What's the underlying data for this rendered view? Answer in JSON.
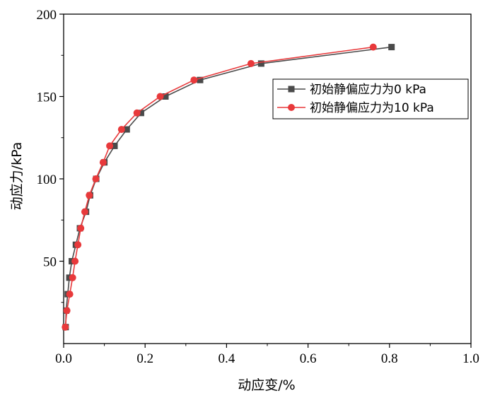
{
  "chart_data": {
    "type": "line",
    "xlabel": "动应变/%",
    "ylabel": "动应力/kPa",
    "xlim": [
      0.0,
      1.0
    ],
    "ylim": [
      0,
      200
    ],
    "x_ticks": [
      "0.0",
      "0.2",
      "0.4",
      "0.6",
      "0.8",
      "1.0"
    ],
    "y_ticks": [
      "50",
      "100",
      "150",
      "200"
    ],
    "legend_position": "upper-right",
    "grid": false,
    "series": [
      {
        "name": "初始静偏应力为0 kPa",
        "color": "#4a4a4a",
        "marker": "square",
        "x": [
          0.005,
          0.006,
          0.01,
          0.014,
          0.02,
          0.03,
          0.04,
          0.055,
          0.065,
          0.08,
          0.1,
          0.125,
          0.155,
          0.19,
          0.25,
          0.335,
          0.485,
          0.805
        ],
        "y": [
          10,
          20,
          30,
          40,
          50,
          60,
          70,
          80,
          90,
          100,
          110,
          120,
          130,
          140,
          150,
          160,
          170,
          180
        ]
      },
      {
        "name": "初始静偏应力为10 kPa",
        "color": "#e8393b",
        "marker": "circle",
        "x": [
          0.004,
          0.008,
          0.015,
          0.022,
          0.028,
          0.035,
          0.042,
          0.052,
          0.063,
          0.079,
          0.097,
          0.113,
          0.142,
          0.18,
          0.237,
          0.32,
          0.46,
          0.76
        ],
        "y": [
          10,
          20,
          30,
          40,
          50,
          60,
          70,
          80,
          90,
          100,
          110,
          120,
          130,
          140,
          150,
          160,
          170,
          180
        ]
      }
    ]
  }
}
